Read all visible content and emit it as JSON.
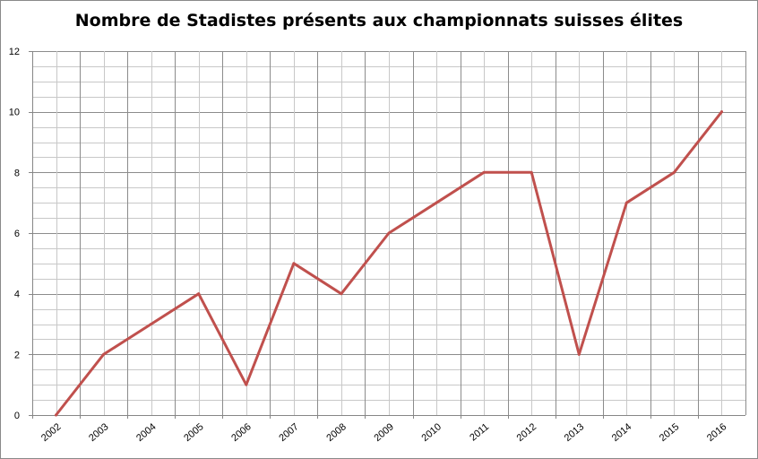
{
  "chart_data": {
    "type": "line",
    "title": "Nombre de Stadistes présents aux championnats suisses élites",
    "xlabel": "",
    "ylabel": "",
    "categories": [
      "2002",
      "2003",
      "2004",
      "2005",
      "2006",
      "2007",
      "2008",
      "2009",
      "2010",
      "2011",
      "2012",
      "2013",
      "2014",
      "2015",
      "2016"
    ],
    "series": [
      {
        "values": [
          0,
          2,
          3,
          4,
          1,
          5,
          4,
          6,
          7,
          8,
          8,
          2,
          7,
          8,
          10
        ]
      }
    ],
    "ylim": [
      0,
      12
    ],
    "y_ticks": [
      0,
      2,
      4,
      6,
      8,
      10,
      12
    ],
    "grid": true,
    "legend": "none",
    "colors": {
      "line": "#c0504d",
      "major_grid": "#8c8c8c",
      "minor_grid": "#c8c8c8"
    }
  }
}
